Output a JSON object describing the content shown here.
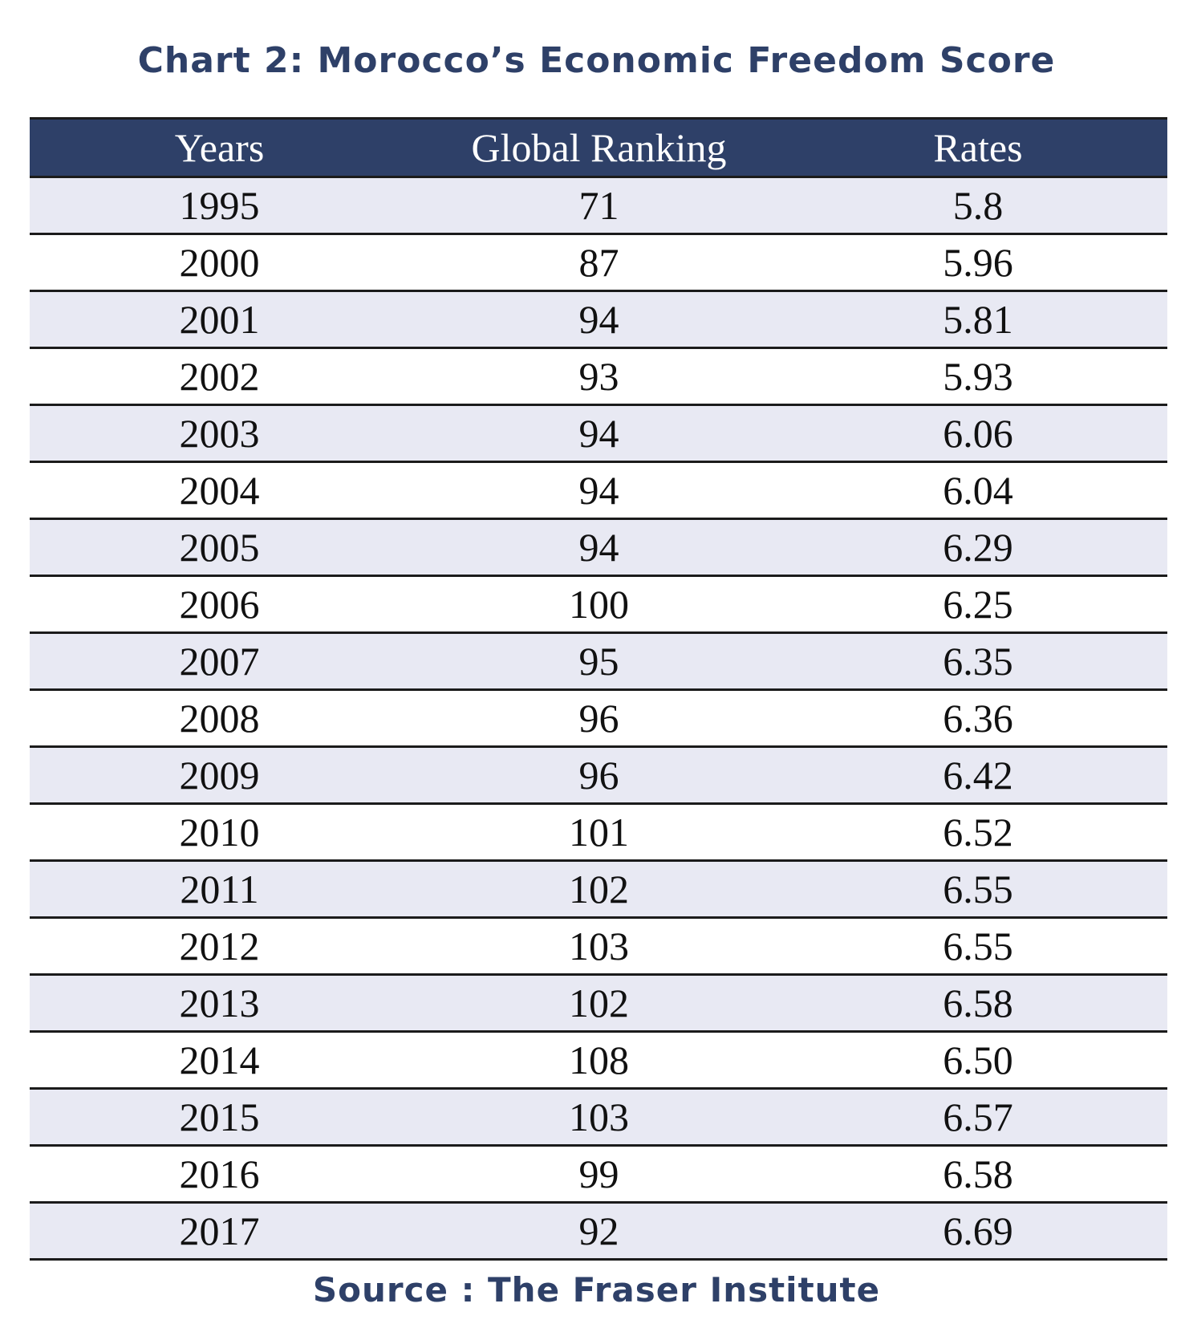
{
  "chart_data": {
    "type": "table",
    "title": "Chart 2: Morocco’s Economic Freedom Score",
    "columns": [
      "Years",
      "Global Ranking",
      "Rates"
    ],
    "rows": [
      [
        "1995",
        "71",
        "5.8"
      ],
      [
        "2000",
        "87",
        "5.96"
      ],
      [
        "2001",
        "94",
        "5.81"
      ],
      [
        "2002",
        "93",
        "5.93"
      ],
      [
        "2003",
        "94",
        "6.06"
      ],
      [
        "2004",
        "94",
        "6.04"
      ],
      [
        "2005",
        "94",
        "6.29"
      ],
      [
        "2006",
        "100",
        "6.25"
      ],
      [
        "2007",
        "95",
        "6.35"
      ],
      [
        "2008",
        "96",
        "6.36"
      ],
      [
        "2009",
        "96",
        "6.42"
      ],
      [
        "2010",
        "101",
        "6.52"
      ],
      [
        "2011",
        "102",
        "6.55"
      ],
      [
        "2012",
        "103",
        "6.55"
      ],
      [
        "2013",
        "102",
        "6.58"
      ],
      [
        "2014",
        "108",
        "6.50"
      ],
      [
        "2015",
        "103",
        "6.57"
      ],
      [
        "2016",
        "99",
        "6.58"
      ],
      [
        "2017",
        "92",
        "6.69"
      ]
    ],
    "source": "Source : The Fraser Institute"
  },
  "colors": {
    "header_bg": "#2e4068",
    "header_text": "#ffffff",
    "title_text": "#2e4068",
    "stripe": "#e8e9f3",
    "rule": "#1b1b1b"
  }
}
